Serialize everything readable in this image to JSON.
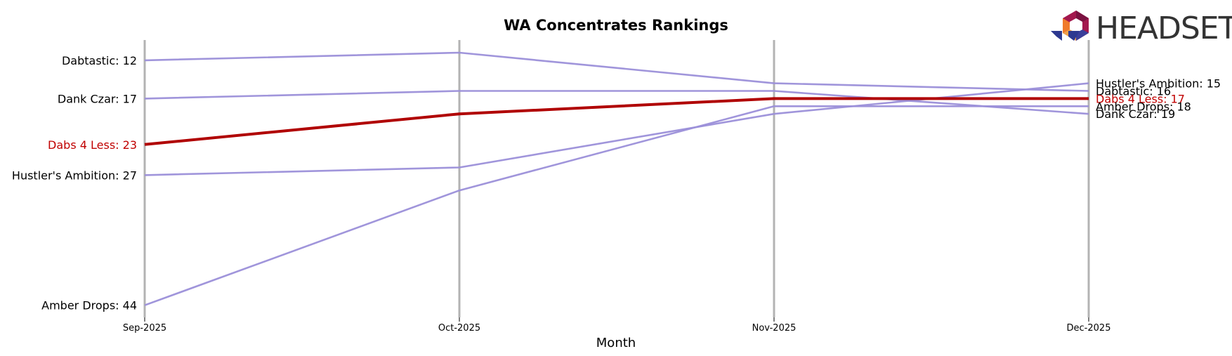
{
  "brand": {
    "name": "HEADSET"
  },
  "chart_data": {
    "type": "line",
    "title": "WA Concentrates Rankings",
    "xlabel": "Month",
    "ylabel": "",
    "categories": [
      "Sep-2025",
      "Oct-2025",
      "Nov-2025",
      "Dec-2025"
    ],
    "y_inverted": true,
    "ylim": [
      10,
      45
    ],
    "grid": "vertical lines at each month",
    "series": [
      {
        "name": "Dabtastic",
        "values": [
          12,
          11,
          15,
          16
        ],
        "color": "#9b8fd9",
        "highlight": false
      },
      {
        "name": "Dank Czar",
        "values": [
          17,
          16,
          16,
          19
        ],
        "color": "#9b8fd9",
        "highlight": false
      },
      {
        "name": "Dabs 4 Less",
        "values": [
          23,
          19,
          17,
          17
        ],
        "color": "#b00000",
        "highlight": true
      },
      {
        "name": "Hustler's Ambition",
        "values": [
          27,
          26,
          19,
          15
        ],
        "color": "#9b8fd9",
        "highlight": false
      },
      {
        "name": "Amber Drops",
        "values": [
          44,
          29,
          18,
          18
        ],
        "color": "#9b8fd9",
        "highlight": false
      }
    ],
    "start_labels": [
      "Dabtastic: 12",
      "Dank Czar: 17",
      "Dabs 4 Less: 23",
      "Hustler's Ambition: 27",
      "Amber Drops: 44"
    ],
    "end_labels": [
      "Hustler's Ambition: 15",
      "Dabtastic: 16",
      "Dabs 4 Less: 17",
      "Amber Drops: 18",
      "Dank Czar: 19"
    ]
  }
}
